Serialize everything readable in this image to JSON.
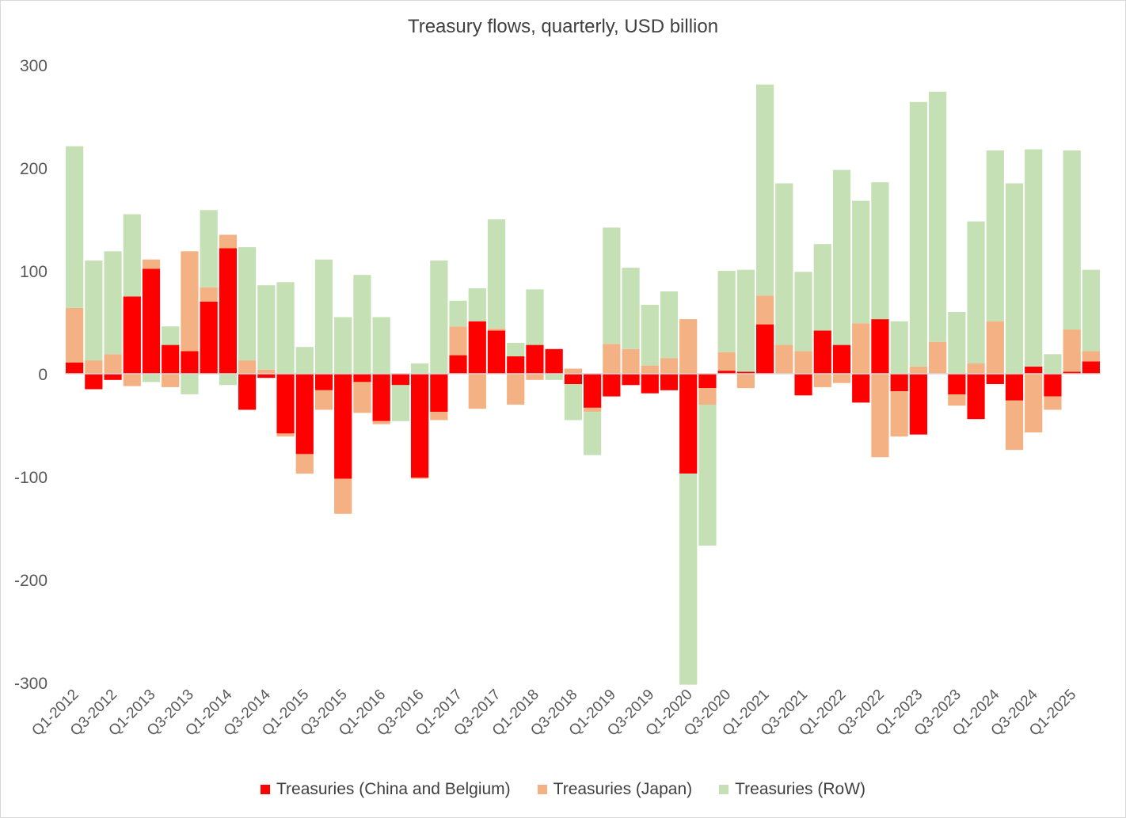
{
  "chart_data": {
    "type": "bar",
    "stacked": true,
    "title": "Treasury flows, quarterly, USD billion",
    "ylim": [
      -300,
      300
    ],
    "yticks": [
      300,
      200,
      100,
      0,
      -100,
      -200,
      -300
    ],
    "grid": false,
    "legend_position": "bottom",
    "categories": [
      "Q1-2012",
      "Q2-2012",
      "Q3-2012",
      "Q4-2012",
      "Q1-2013",
      "Q2-2013",
      "Q3-2013",
      "Q4-2013",
      "Q1-2014",
      "Q2-2014",
      "Q3-2014",
      "Q4-2014",
      "Q1-2015",
      "Q2-2015",
      "Q3-2015",
      "Q4-2015",
      "Q1-2016",
      "Q2-2016",
      "Q3-2016",
      "Q4-2016",
      "Q1-2017",
      "Q2-2017",
      "Q3-2017",
      "Q4-2017",
      "Q1-2018",
      "Q2-2018",
      "Q3-2018",
      "Q4-2018",
      "Q1-2019",
      "Q2-2019",
      "Q3-2019",
      "Q4-2019",
      "Q1-2020",
      "Q2-2020",
      "Q3-2020",
      "Q4-2020",
      "Q1-2021",
      "Q2-2021",
      "Q3-2021",
      "Q4-2021",
      "Q1-2022",
      "Q2-2022",
      "Q3-2022",
      "Q4-2022",
      "Q1-2023",
      "Q2-2023",
      "Q3-2023",
      "Q4-2023",
      "Q1-2024",
      "Q2-2024",
      "Q3-2024",
      "Q4-2024",
      "Q1-2025",
      "Q2-2025"
    ],
    "xtick_labels": [
      "Q1-2012",
      "Q3-2012",
      "Q1-2013",
      "Q3-2013",
      "Q1-2014",
      "Q3-2014",
      "Q1-2015",
      "Q3-2015",
      "Q1-2016",
      "Q3-2016",
      "Q1-2017",
      "Q3-2017",
      "Q1-2018",
      "Q3-2018",
      "Q1-2019",
      "Q3-2019",
      "Q1-2020",
      "Q3-2020",
      "Q1-2021",
      "Q3-2021",
      "Q1-2022",
      "Q3-2022",
      "Q1-2023",
      "Q3-2023",
      "Q1-2024",
      "Q3-2024",
      "Q1-2025"
    ],
    "series": [
      {
        "name": "Treasuries (China and Belgium)",
        "color": "#ff0000",
        "values": [
          11,
          -15,
          -6,
          75,
          102,
          28,
          22,
          70,
          122,
          -35,
          -4,
          -58,
          -78,
          -16,
          -102,
          -8,
          -46,
          -11,
          -101,
          -37,
          18,
          51,
          42,
          17,
          28,
          24,
          -10,
          -33,
          -22,
          -11,
          -19,
          -16,
          -97,
          -14,
          3,
          2,
          48,
          0,
          -21,
          42,
          28,
          -28,
          53,
          -17,
          -59,
          0,
          -20,
          -44,
          -10,
          -26,
          7,
          -22,
          2,
          12
        ]
      },
      {
        "name": "Treasuries (Japan)",
        "color": "#f4b183",
        "values": [
          53,
          13,
          19,
          -12,
          9,
          -13,
          97,
          14,
          13,
          13,
          4,
          -3,
          -19,
          -19,
          -34,
          -30,
          -3,
          0,
          -1,
          -8,
          28,
          -34,
          2,
          -30,
          -6,
          0,
          5,
          -4,
          29,
          24,
          8,
          15,
          53,
          -16,
          18,
          -14,
          28,
          28,
          22,
          -13,
          -9,
          49,
          -81,
          -44,
          7,
          31,
          -11,
          10,
          51,
          -48,
          -57,
          -13,
          41,
          10
        ]
      },
      {
        "name": "Treasuries (RoW)",
        "color": "#c5e0b4",
        "values": [
          157,
          97,
          100,
          80,
          -8,
          18,
          -20,
          75,
          -11,
          110,
          82,
          89,
          26,
          111,
          55,
          96,
          55,
          -35,
          10,
          110,
          25,
          32,
          106,
          13,
          54,
          -6,
          -35,
          -42,
          113,
          79,
          59,
          65,
          -205,
          -137,
          79,
          99,
          205,
          157,
          77,
          84,
          170,
          119,
          133,
          51,
          257,
          243,
          60,
          138,
          166,
          185,
          211,
          19,
          174,
          79
        ]
      }
    ]
  }
}
